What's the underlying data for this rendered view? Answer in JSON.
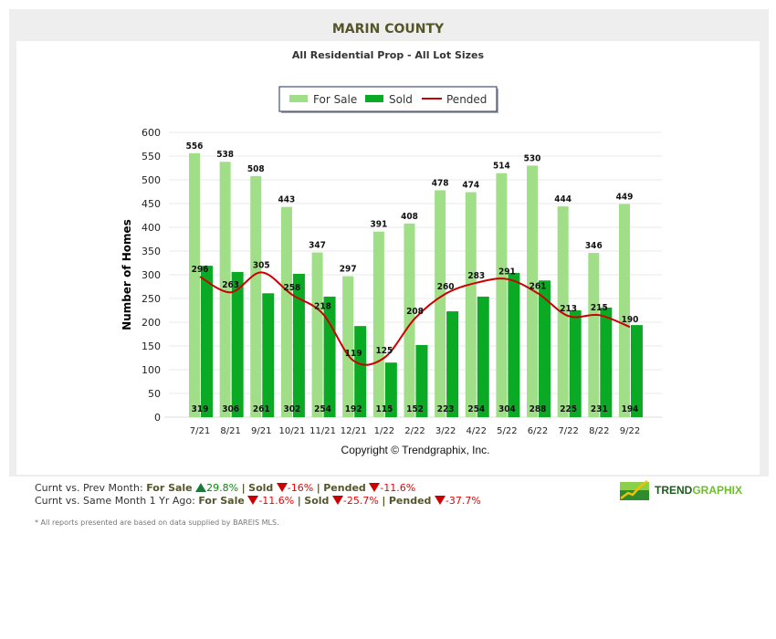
{
  "header": {
    "title": "MARIN COUNTY",
    "subtitle": "All Residential Prop - All Lot Sizes"
  },
  "chart_data": {
    "type": "bar",
    "ylabel": "Number of Homes",
    "ylim": [
      0,
      600
    ],
    "yticks": [
      0,
      50,
      100,
      150,
      200,
      250,
      300,
      350,
      400,
      450,
      500,
      550,
      600
    ],
    "grid": true,
    "legend_placement": "top-center",
    "categories": [
      "7/21",
      "8/21",
      "9/21",
      "10/21",
      "11/21",
      "12/21",
      "1/22",
      "2/22",
      "3/22",
      "4/22",
      "5/22",
      "6/22",
      "7/22",
      "8/22",
      "9/22"
    ],
    "series": [
      {
        "name": "For Sale",
        "type": "bar",
        "color": "#a0de88",
        "values": [
          556,
          538,
          508,
          443,
          347,
          297,
          391,
          408,
          478,
          474,
          514,
          530,
          444,
          346,
          449
        ]
      },
      {
        "name": "Sold",
        "type": "bar",
        "color": "#0aaa24",
        "values": [
          319,
          306,
          261,
          302,
          254,
          192,
          115,
          152,
          223,
          254,
          304,
          288,
          225,
          231,
          194
        ]
      },
      {
        "name": "Pended",
        "type": "line",
        "color": "#cc0000",
        "values": [
          296,
          263,
          305,
          258,
          218,
          119,
          125,
          208,
          260,
          283,
          291,
          261,
          213,
          215,
          190
        ]
      }
    ],
    "copyright": "Copyright © Trendgraphix, Inc."
  },
  "stats": {
    "prev": {
      "label": "Curnt vs. Prev Month:",
      "for_sale_label": "For Sale",
      "for_sale": "29.8%",
      "sold_label": "Sold",
      "sold": "-16%",
      "pended_label": "Pended",
      "pended": "-11.6%"
    },
    "year": {
      "label": "Curnt vs. Same Month 1 Yr Ago:",
      "for_sale_label": "For Sale",
      "for_sale": "-11.6%",
      "sold_label": "Sold",
      "sold": "-25.7%",
      "pended_label": "Pended",
      "pended": "-37.7%"
    },
    "sep": "|"
  },
  "note": "* All reports presented are based on data supplied by BAREIS MLS.",
  "logo": {
    "text1": "TREND",
    "text2": "GRAPHIX"
  }
}
